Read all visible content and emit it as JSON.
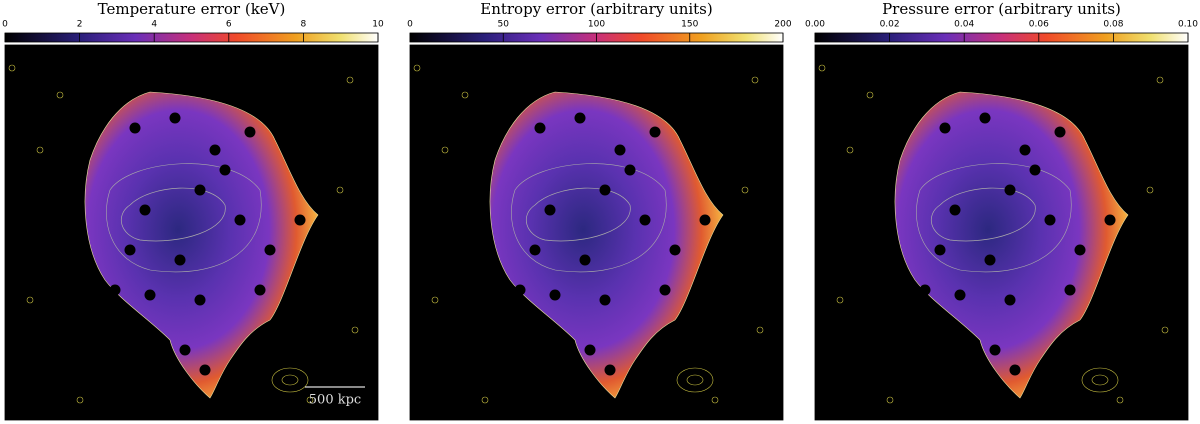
{
  "chart_data": [
    {
      "type": "image",
      "title": "Temperature error (keV)",
      "clim": [
        0,
        10
      ],
      "cticks": [
        0,
        2,
        4,
        6,
        8,
        10
      ],
      "scale_bar_label": "500 kpc"
    },
    {
      "type": "image",
      "title": "Entropy error (arbitrary units)",
      "clim": [
        0,
        200
      ],
      "cticks": [
        0,
        50,
        100,
        150,
        200
      ]
    },
    {
      "type": "image",
      "title": "Pressure error (arbitrary units)",
      "clim": [
        0,
        0.1
      ],
      "cticks": [
        {
          "value": 0,
          "label": "0.00"
        },
        0.02,
        0.04,
        0.06,
        0.08,
        {
          "value": 0.1,
          "label": "0.10"
        }
      ]
    }
  ]
}
